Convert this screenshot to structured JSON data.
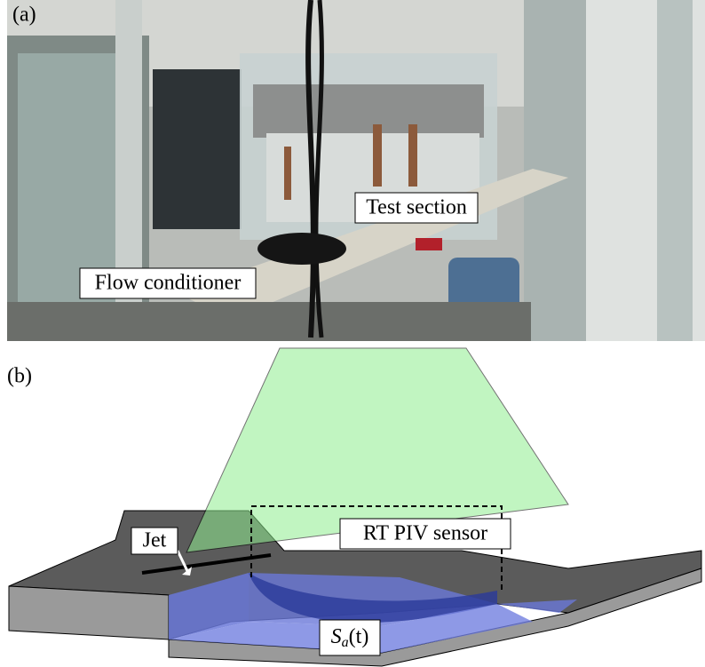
{
  "panel_a": {
    "label": "(a)",
    "annotations": [
      "Test section",
      "Flow conditioner"
    ]
  },
  "panel_b": {
    "label": "(b)",
    "annotations": {
      "jet": "Jet",
      "sensor": "RT PIV sensor"
    },
    "surface_label": {
      "symbol": "S",
      "subscript": "a",
      "argument": "(t)"
    }
  }
}
